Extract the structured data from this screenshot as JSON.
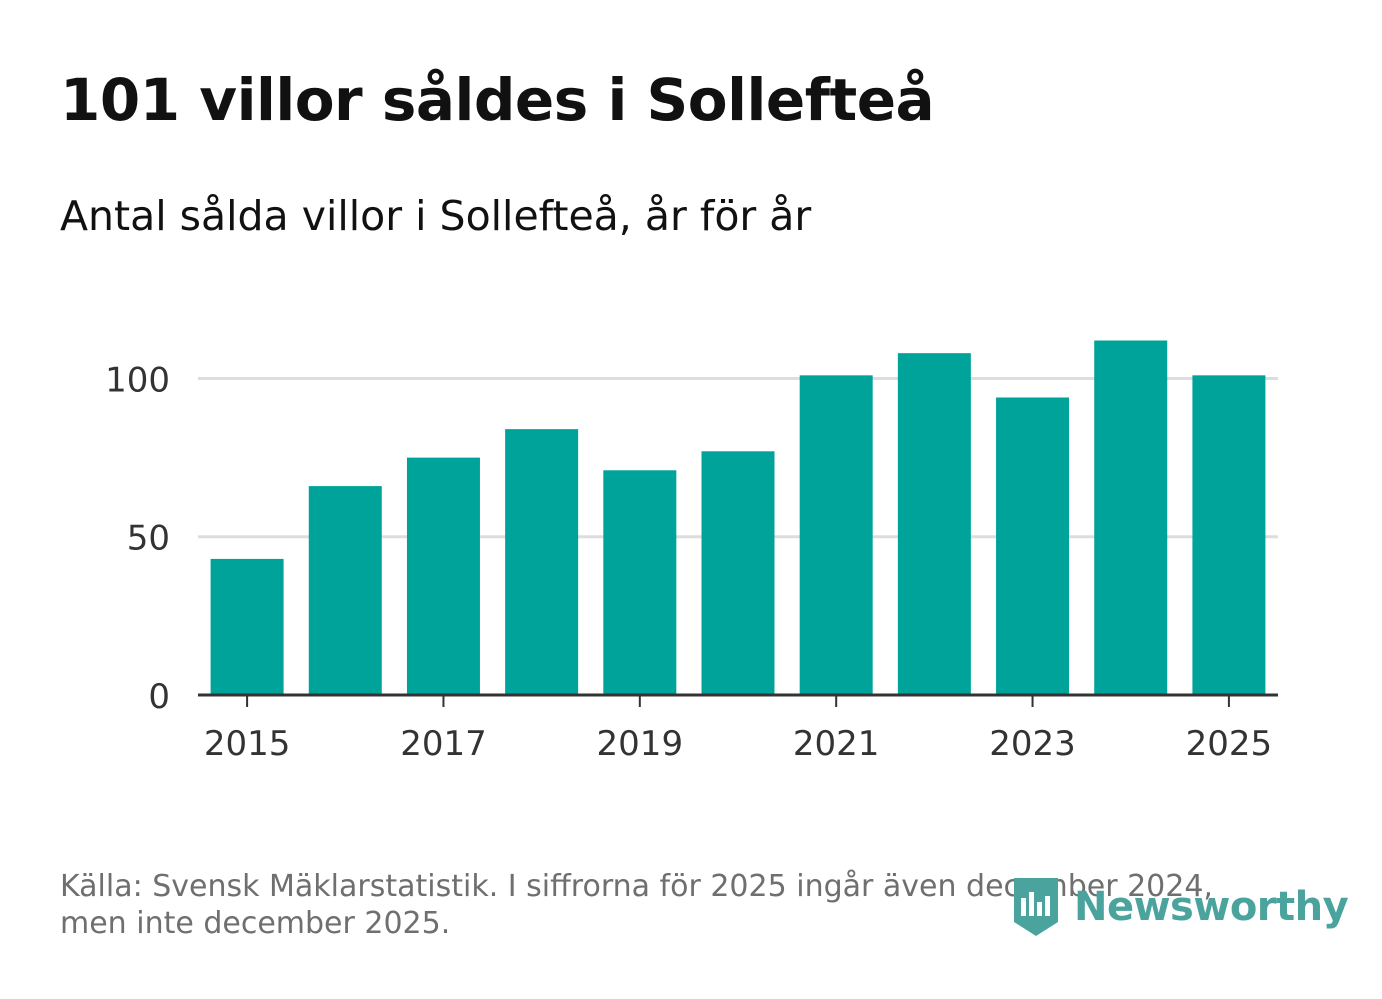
{
  "title": "101 villor såldes i Sollefteå",
  "subtitle": "Antal sålda villor i Sollefteå, år för år",
  "source": {
    "line1": "Källa: Svensk Mäklarstatistik. I siffrorna för 2025 ingår även december 2024,",
    "line2": "men inte december 2025."
  },
  "brand": {
    "name": "Newsworthy",
    "icon": "newsworthy-logo-icon",
    "color": "#4aa39d"
  },
  "colors": {
    "bar": "#00a39a",
    "grid": "#dddddd",
    "axis": "#333333",
    "text": "#333333"
  },
  "chart_data": {
    "type": "bar",
    "title": "101 villor såldes i Sollefteå",
    "subtitle": "Antal sålda villor i Sollefteå, år för år",
    "categories": [
      "2015",
      "2016",
      "2017",
      "2018",
      "2019",
      "2020",
      "2021",
      "2022",
      "2023",
      "2024",
      "2025"
    ],
    "values": [
      43,
      66,
      75,
      84,
      71,
      77,
      101,
      108,
      94,
      112,
      101
    ],
    "xticks": [
      "2015",
      "2017",
      "2019",
      "2021",
      "2023",
      "2025"
    ],
    "yticks": [
      0,
      50,
      100
    ],
    "ylim": [
      0,
      118
    ],
    "xlabel": "",
    "ylabel": "",
    "grid": true
  }
}
